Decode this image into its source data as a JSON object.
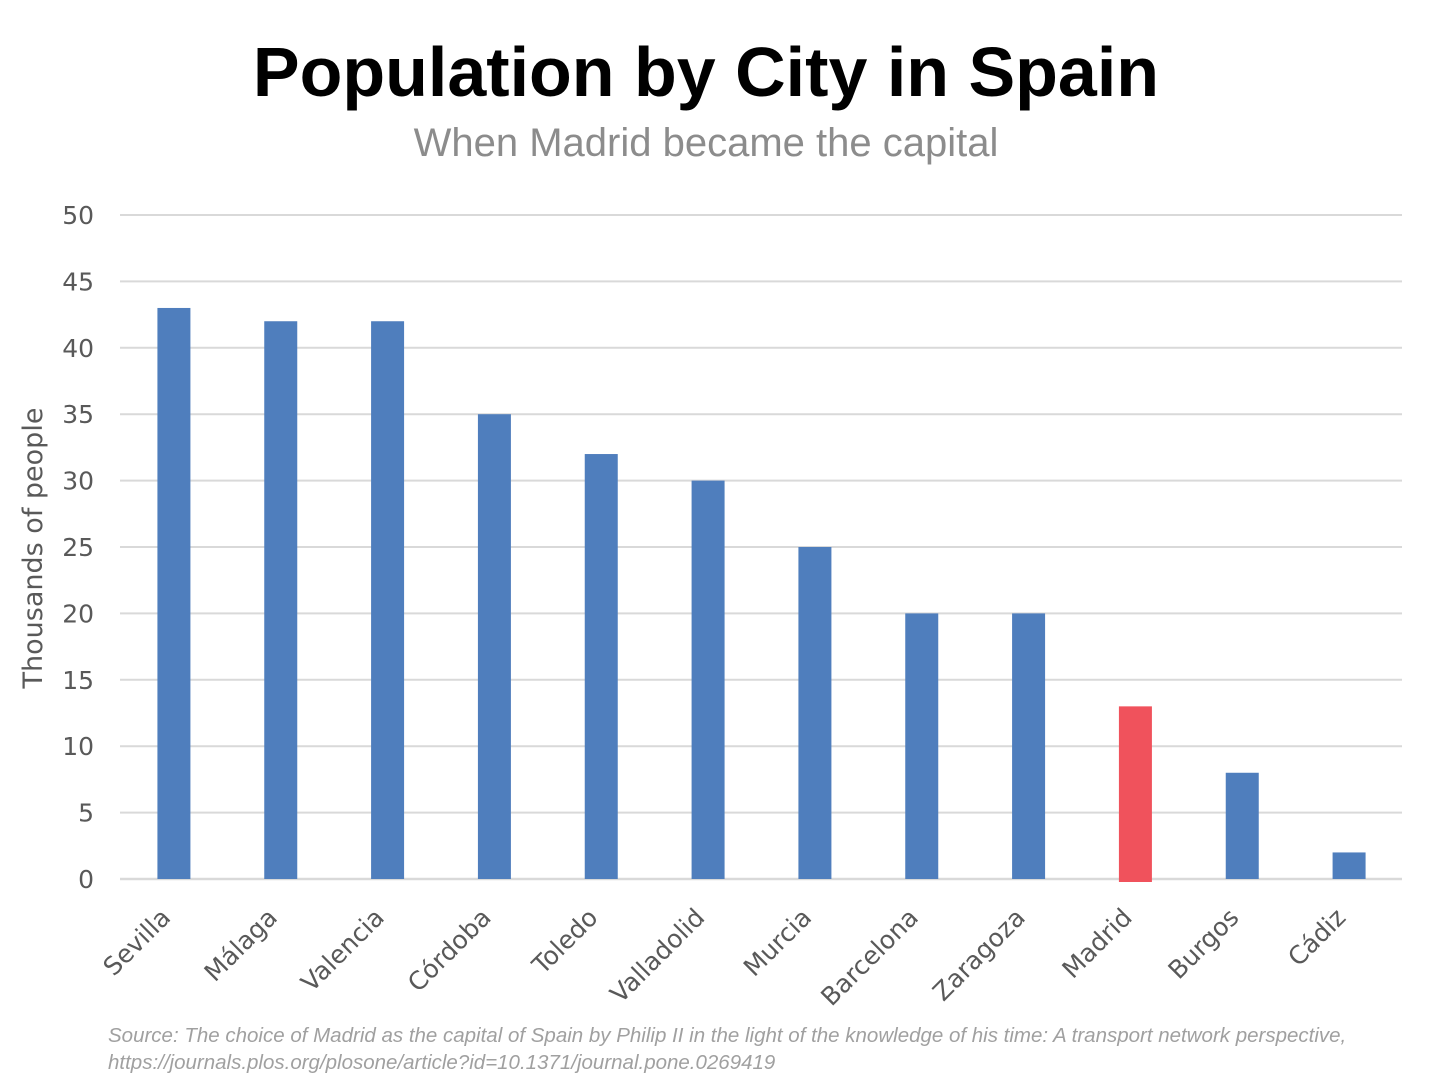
{
  "header": {
    "title": "Population by City in Spain",
    "subtitle": "When Madrid became the capital"
  },
  "source": {
    "line1": "Source: The choice of Madrid as the capital of Spain by Philip II in the light of the knowledge of his time: A transport network perspective,",
    "line2": "https://journals.plos.org/plosone/article?id=10.1371/journal.pone.0269419"
  },
  "colors": {
    "bar": "#4f7ebd",
    "highlight": "#f0525c",
    "grid": "#d9d9d9",
    "tick_text": "#595959"
  },
  "chart_data": {
    "type": "bar",
    "title": "Population by City in Spain",
    "subtitle": "When Madrid became the capital",
    "xlabel": "",
    "ylabel": "Thousands of people",
    "ylim": [
      0,
      50
    ],
    "yticks": [
      0,
      5,
      10,
      15,
      20,
      25,
      30,
      35,
      40,
      45,
      50
    ],
    "grid": true,
    "legend": "none",
    "categories": [
      "Sevilla",
      "Málaga",
      "Valencia",
      "Córdoba",
      "Toledo",
      "Valladolid",
      "Murcia",
      "Barcelona",
      "Zaragoza",
      "Madrid",
      "Burgos",
      "Cádiz"
    ],
    "values": [
      43,
      42,
      42,
      35,
      32,
      30,
      25,
      20,
      20,
      13,
      8,
      2
    ],
    "highlight_category": "Madrid"
  }
}
